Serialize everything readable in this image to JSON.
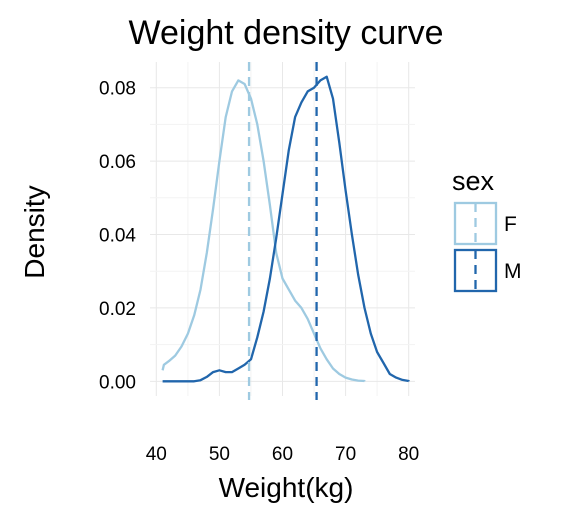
{
  "chart_data": {
    "type": "line",
    "title": "Weight density curve",
    "xlabel": "Weight(kg)",
    "ylabel": "Density",
    "xlim": [
      39,
      81
    ],
    "ylim": [
      -0.004,
      0.087
    ],
    "xticks": [
      40,
      50,
      60,
      70,
      80
    ],
    "xtick_labels": [
      "40",
      "50",
      "60",
      "70",
      "80"
    ],
    "yticks": [
      0.0,
      0.02,
      0.04,
      0.06,
      0.08
    ],
    "ytick_labels": [
      "0.00",
      "0.02",
      "0.04",
      "0.06",
      "0.08"
    ],
    "grid": true,
    "legend": {
      "title": "sex",
      "position": "right"
    },
    "series": [
      {
        "name": "F",
        "color": "#9ecae1",
        "mean": 54.7,
        "points": [
          [
            41,
            0.003
          ],
          [
            41.2,
            0.0045
          ],
          [
            42,
            0.0055
          ],
          [
            43,
            0.007
          ],
          [
            44,
            0.0095
          ],
          [
            45,
            0.013
          ],
          [
            46,
            0.018
          ],
          [
            47,
            0.025
          ],
          [
            48,
            0.035
          ],
          [
            49,
            0.047
          ],
          [
            50,
            0.06
          ],
          [
            51,
            0.072
          ],
          [
            52,
            0.079
          ],
          [
            53,
            0.082
          ],
          [
            54,
            0.081
          ],
          [
            55,
            0.077
          ],
          [
            56,
            0.07
          ],
          [
            57,
            0.06
          ],
          [
            58,
            0.048
          ],
          [
            59,
            0.035
          ],
          [
            60,
            0.028
          ],
          [
            61,
            0.025
          ],
          [
            62,
            0.022
          ],
          [
            63,
            0.02
          ],
          [
            64,
            0.017
          ],
          [
            65,
            0.013
          ],
          [
            66,
            0.009
          ],
          [
            67,
            0.006
          ],
          [
            68,
            0.0035
          ],
          [
            69,
            0.002
          ],
          [
            70,
            0.001
          ],
          [
            71,
            0.0005
          ],
          [
            72,
            0.0002
          ],
          [
            73,
            0.0001
          ],
          [
            73,
            0
          ]
        ]
      },
      {
        "name": "M",
        "color": "#2166ac",
        "mean": 65.4,
        "points": [
          [
            41,
            0
          ],
          [
            46,
            0
          ],
          [
            47,
            0.0003
          ],
          [
            48,
            0.0012
          ],
          [
            49,
            0.0025
          ],
          [
            50,
            0.003
          ],
          [
            51,
            0.0025
          ],
          [
            52,
            0.0025
          ],
          [
            53,
            0.0035
          ],
          [
            54,
            0.0045
          ],
          [
            55,
            0.006
          ],
          [
            56,
            0.012
          ],
          [
            57,
            0.019
          ],
          [
            58,
            0.028
          ],
          [
            59,
            0.039
          ],
          [
            60,
            0.051
          ],
          [
            61,
            0.063
          ],
          [
            62,
            0.072
          ],
          [
            63,
            0.076
          ],
          [
            64,
            0.079
          ],
          [
            65,
            0.08
          ],
          [
            66,
            0.082
          ],
          [
            67,
            0.083
          ],
          [
            68,
            0.077
          ],
          [
            69,
            0.065
          ],
          [
            70,
            0.052
          ],
          [
            71,
            0.04
          ],
          [
            72,
            0.029
          ],
          [
            73,
            0.02
          ],
          [
            74,
            0.013
          ],
          [
            75,
            0.008
          ],
          [
            76,
            0.005
          ],
          [
            77,
            0.002
          ],
          [
            78,
            0.001
          ],
          [
            79,
            0.0004
          ],
          [
            80,
            0.0001
          ],
          [
            80,
            0
          ]
        ]
      }
    ]
  }
}
